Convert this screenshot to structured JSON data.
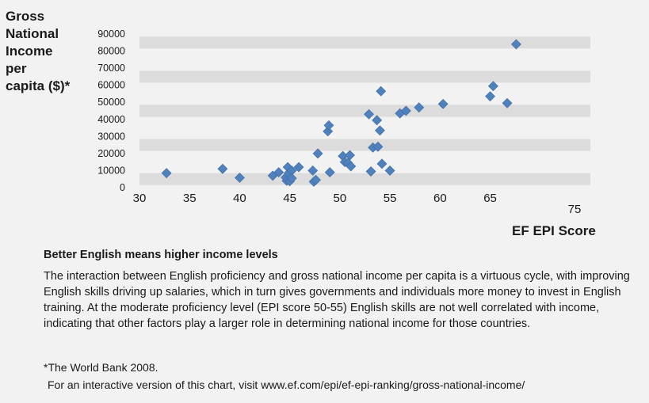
{
  "chart_data": {
    "type": "scatter",
    "title": "",
    "ylabel": "Gross National Income per capita ($)*",
    "xlabel": "EF EPI Score",
    "xlim": [
      30,
      75
    ],
    "ylim": [
      0,
      90000
    ],
    "x_ticks": [
      "30",
      "35",
      "40",
      "45",
      "50",
      "55",
      "60",
      "65",
      "75"
    ],
    "x_tick_values": [
      30,
      35,
      40,
      45,
      50,
      55,
      60,
      65,
      75
    ],
    "y_ticks": [
      "0",
      "10000",
      "20000",
      "30000",
      "40000",
      "50000",
      "60000",
      "70000",
      "80000",
      "90000"
    ],
    "y_tick_values": [
      0,
      10000,
      20000,
      30000,
      40000,
      50000,
      60000,
      70000,
      80000,
      90000
    ],
    "grid": "alternating horizontal bands",
    "marker_color": "#4f81bd",
    "band_color": "#dcdcdc",
    "points": [
      {
        "x": 32.7,
        "y": 8500
      },
      {
        "x": 38.3,
        "y": 11000
      },
      {
        "x": 40.0,
        "y": 5800
      },
      {
        "x": 43.3,
        "y": 7000
      },
      {
        "x": 43.9,
        "y": 9000
      },
      {
        "x": 44.6,
        "y": 6000
      },
      {
        "x": 44.7,
        "y": 4000
      },
      {
        "x": 44.8,
        "y": 12000
      },
      {
        "x": 44.9,
        "y": 8500
      },
      {
        "x": 45.0,
        "y": 3800
      },
      {
        "x": 45.2,
        "y": 10000
      },
      {
        "x": 45.2,
        "y": 5500
      },
      {
        "x": 45.9,
        "y": 12000
      },
      {
        "x": 47.3,
        "y": 10000
      },
      {
        "x": 47.4,
        "y": 3500
      },
      {
        "x": 47.6,
        "y": 4500
      },
      {
        "x": 47.8,
        "y": 20000
      },
      {
        "x": 48.8,
        "y": 33000
      },
      {
        "x": 48.9,
        "y": 36500
      },
      {
        "x": 49.0,
        "y": 9000
      },
      {
        "x": 50.3,
        "y": 18500
      },
      {
        "x": 50.5,
        "y": 15000
      },
      {
        "x": 50.8,
        "y": 14500
      },
      {
        "x": 51.0,
        "y": 19000
      },
      {
        "x": 51.1,
        "y": 12500
      },
      {
        "x": 52.9,
        "y": 43000
      },
      {
        "x": 53.1,
        "y": 9500
      },
      {
        "x": 53.3,
        "y": 23500
      },
      {
        "x": 53.7,
        "y": 39500
      },
      {
        "x": 53.8,
        "y": 24000
      },
      {
        "x": 54.0,
        "y": 33500
      },
      {
        "x": 54.1,
        "y": 56500
      },
      {
        "x": 54.2,
        "y": 14000
      },
      {
        "x": 55.0,
        "y": 10000
      },
      {
        "x": 56.0,
        "y": 43500
      },
      {
        "x": 56.6,
        "y": 45000
      },
      {
        "x": 57.9,
        "y": 47000
      },
      {
        "x": 60.3,
        "y": 49000
      },
      {
        "x": 65.0,
        "y": 53500
      },
      {
        "x": 65.3,
        "y": 59500
      },
      {
        "x": 66.7,
        "y": 49500
      },
      {
        "x": 67.6,
        "y": 84000
      }
    ]
  },
  "labels": {
    "y_axis_title": "Gross\nNational\nIncome\nper\ncapita ($)*",
    "x_axis_title": "EF EPI Score"
  },
  "caption": {
    "heading": "Better English means higher income levels",
    "body": "The interaction between English proficiency and gross national income per capita is a virtuous cycle, with improving English skills driving up salaries, which in turn gives governments and individuals more money to invest in English training.  At the moderate proficiency level (EPI score 50-55) English skills are not well correlated with income, indicating that other factors play a larger role in determining national income for those countries."
  },
  "footnote": "*The World Bank 2008.",
  "source_link": "For an interactive version of this chart, visit www.ef.com/epi/ef-epi-ranking/gross-national-income/"
}
